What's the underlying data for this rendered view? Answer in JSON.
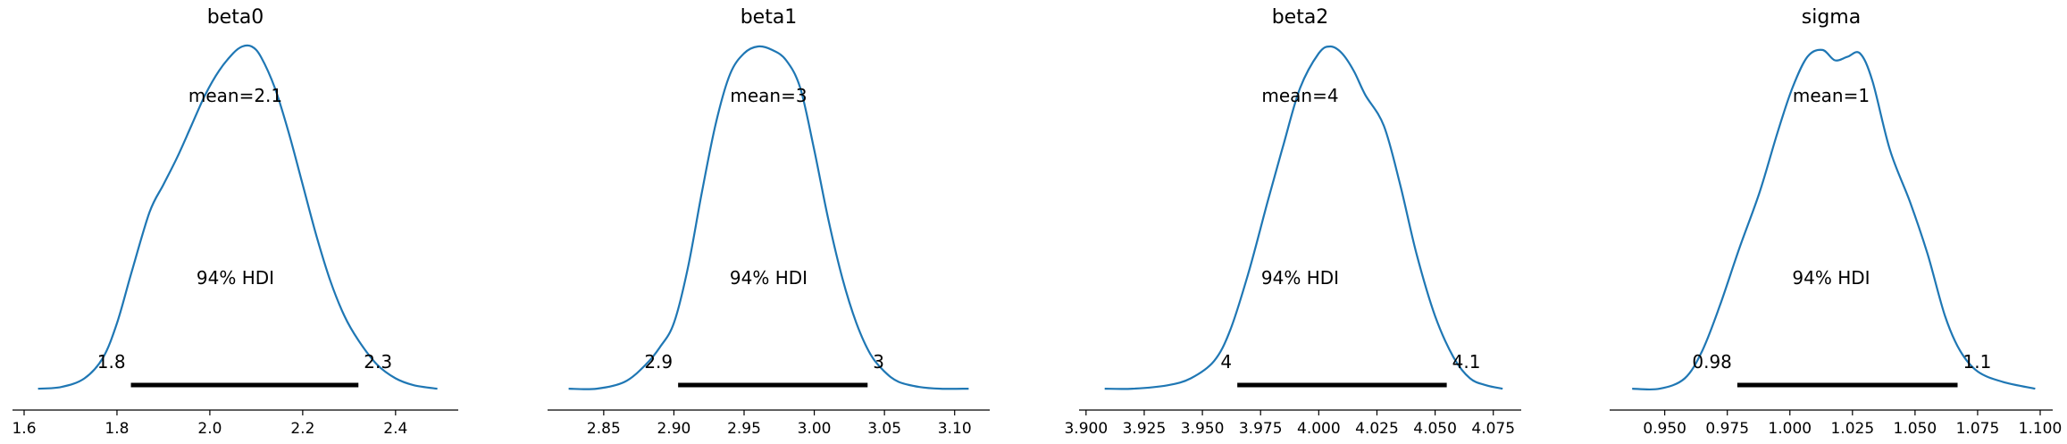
{
  "chart_data": [
    {
      "type": "area",
      "title": "beta0",
      "series_color": "#1f77b4",
      "xlim": [
        1.575,
        2.535
      ],
      "ticks": [
        1.6,
        1.8,
        2.0,
        2.2,
        2.4
      ],
      "tick_labels": [
        "1.6",
        "1.8",
        "2.0",
        "2.2",
        "2.4"
      ],
      "mean_label": "mean=2.1",
      "hdi_label": "94% HDI",
      "hdi": [
        1.83,
        2.32
      ],
      "hdi_low_label": "1.8",
      "hdi_high_label": "2.3",
      "density": {
        "x": [
          1.63,
          1.68,
          1.73,
          1.77,
          1.8,
          1.83,
          1.87,
          1.9,
          1.93,
          1.96,
          1.99,
          2.02,
          2.05,
          2.07,
          2.09,
          2.11,
          2.14,
          2.17,
          2.2,
          2.23,
          2.26,
          2.29,
          2.32,
          2.36,
          2.4,
          2.44,
          2.49
        ],
        "y": [
          0.01,
          0.015,
          0.04,
          0.1,
          0.2,
          0.34,
          0.52,
          0.6,
          0.68,
          0.77,
          0.86,
          0.93,
          0.98,
          1.0,
          1.0,
          0.97,
          0.88,
          0.75,
          0.6,
          0.45,
          0.32,
          0.22,
          0.15,
          0.08,
          0.04,
          0.02,
          0.01
        ]
      }
    },
    {
      "type": "area",
      "title": "beta1",
      "series_color": "#1f77b4",
      "xlim": [
        2.81,
        3.125
      ],
      "ticks": [
        2.85,
        2.9,
        2.95,
        3.0,
        3.05,
        3.1
      ],
      "tick_labels": [
        "2.85",
        "2.90",
        "2.95",
        "3.00",
        "3.05",
        "3.10"
      ],
      "mean_label": "mean=3",
      "hdi_label": "94% HDI",
      "hdi": [
        2.903,
        3.038
      ],
      "hdi_low_label": "2.9",
      "hdi_high_label": "3",
      "density": {
        "x": [
          2.825,
          2.845,
          2.865,
          2.88,
          2.89,
          2.9,
          2.91,
          2.92,
          2.93,
          2.94,
          2.95,
          2.96,
          2.97,
          2.98,
          2.99,
          3.0,
          3.01,
          3.02,
          3.03,
          3.04,
          3.05,
          3.06,
          3.075,
          3.09,
          3.11
        ],
        "y": [
          0.01,
          0.01,
          0.03,
          0.08,
          0.13,
          0.2,
          0.36,
          0.58,
          0.78,
          0.92,
          0.98,
          1.0,
          0.99,
          0.96,
          0.88,
          0.7,
          0.5,
          0.33,
          0.2,
          0.11,
          0.06,
          0.03,
          0.015,
          0.01,
          0.01
        ]
      }
    },
    {
      "type": "area",
      "title": "beta2",
      "series_color": "#1f77b4",
      "xlim": [
        3.897,
        4.087
      ],
      "ticks": [
        3.9,
        3.925,
        3.95,
        3.975,
        4.0,
        4.025,
        4.05,
        4.075
      ],
      "tick_labels": [
        "3.900",
        "3.925",
        "3.950",
        "3.975",
        "4.000",
        "4.025",
        "4.050",
        "4.075"
      ],
      "mean_label": "mean=4",
      "hdi_label": "94% HDI",
      "hdi": [
        3.965,
        4.055
      ],
      "hdi_low_label": "4",
      "hdi_high_label": "4.1",
      "density": {
        "x": [
          3.908,
          3.92,
          3.935,
          3.945,
          3.955,
          3.962,
          3.97,
          3.978,
          3.985,
          3.992,
          4.0,
          4.005,
          4.01,
          4.015,
          4.02,
          4.028,
          4.035,
          4.042,
          4.05,
          4.058,
          4.065,
          4.072,
          4.079
        ],
        "y": [
          0.01,
          0.01,
          0.02,
          0.04,
          0.09,
          0.18,
          0.35,
          0.55,
          0.72,
          0.88,
          0.98,
          1.0,
          0.98,
          0.93,
          0.86,
          0.77,
          0.6,
          0.4,
          0.22,
          0.1,
          0.04,
          0.02,
          0.01
        ]
      }
    },
    {
      "type": "area",
      "title": "sigma",
      "series_color": "#1f77b4",
      "xlim": [
        0.928,
        1.105
      ],
      "ticks": [
        0.95,
        0.975,
        1.0,
        1.025,
        1.05,
        1.075,
        1.1
      ],
      "tick_labels": [
        "0.950",
        "0.975",
        "1.000",
        "1.025",
        "1.050",
        "1.075",
        "1.100"
      ],
      "mean_label": "mean=1",
      "hdi_label": "94% HDI",
      "hdi": [
        0.979,
        1.067
      ],
      "hdi_low_label": "0.98",
      "hdi_high_label": "1.1",
      "density": {
        "x": [
          0.937,
          0.948,
          0.958,
          0.965,
          0.972,
          0.98,
          0.988,
          0.995,
          1.001,
          1.007,
          1.013,
          1.018,
          1.023,
          1.028,
          1.033,
          1.04,
          1.048,
          1.055,
          1.062,
          1.068,
          1.075,
          1.085,
          1.098
        ],
        "y": [
          0.01,
          0.01,
          0.04,
          0.12,
          0.25,
          0.42,
          0.58,
          0.75,
          0.88,
          0.97,
          0.99,
          0.96,
          0.97,
          0.98,
          0.9,
          0.7,
          0.55,
          0.4,
          0.22,
          0.12,
          0.06,
          0.03,
          0.01
        ]
      }
    }
  ]
}
